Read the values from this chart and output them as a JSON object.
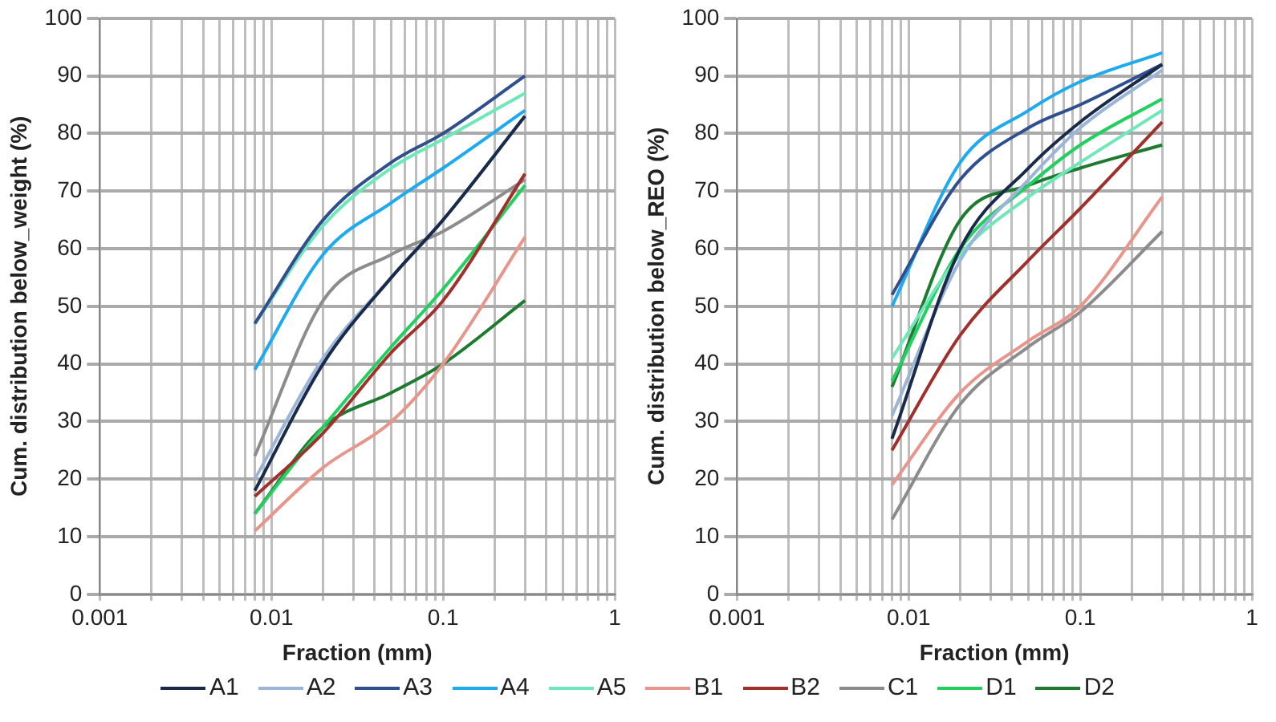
{
  "chart_data": [
    {
      "type": "line",
      "xlabel": "Fraction (mm)",
      "ylabel": "Cum. distribution below_weight (%)",
      "log": "x",
      "grid": true,
      "legend": "bottom",
      "marker": "none",
      "line_style": "solid",
      "x": [
        0.008,
        0.02,
        0.05,
        0.1,
        0.3
      ],
      "xlim": [
        0.001,
        1
      ],
      "ylim": [
        0,
        100
      ],
      "yticks": [
        0,
        10,
        20,
        30,
        40,
        50,
        60,
        70,
        80,
        90,
        100
      ],
      "xticks": [
        {
          "value": 0.001,
          "label": "0.001"
        },
        {
          "value": 0.002,
          "label": null
        },
        {
          "value": 0.003,
          "label": null
        },
        {
          "value": 0.004,
          "label": null
        },
        {
          "value": 0.005,
          "label": null
        },
        {
          "value": 0.006,
          "label": null
        },
        {
          "value": 0.007,
          "label": null
        },
        {
          "value": 0.008,
          "label": null
        },
        {
          "value": 0.009,
          "label": null
        },
        {
          "value": 0.01,
          "label": "0.01"
        },
        {
          "value": 0.02,
          "label": null
        },
        {
          "value": 0.03,
          "label": null
        },
        {
          "value": 0.04,
          "label": null
        },
        {
          "value": 0.05,
          "label": null
        },
        {
          "value": 0.06,
          "label": null
        },
        {
          "value": 0.07,
          "label": null
        },
        {
          "value": 0.08,
          "label": null
        },
        {
          "value": 0.09,
          "label": null
        },
        {
          "value": 0.1,
          "label": "0.1"
        },
        {
          "value": 0.2,
          "label": null
        },
        {
          "value": 0.3,
          "label": null
        },
        {
          "value": 0.4,
          "label": null
        },
        {
          "value": 0.5,
          "label": null
        },
        {
          "value": 0.6,
          "label": null
        },
        {
          "value": 0.7,
          "label": null
        },
        {
          "value": 0.8,
          "label": null
        },
        {
          "value": 0.9,
          "label": null
        },
        {
          "value": 1,
          "label": "1"
        }
      ],
      "series": [
        {
          "name": "A1",
          "color": "#1a2a4a",
          "values": [
            18,
            40,
            55,
            65,
            83
          ]
        },
        {
          "name": "A2",
          "color": "#9bb5d8",
          "values": [
            20,
            41,
            55,
            65,
            83
          ]
        },
        {
          "name": "A3",
          "color": "#2f4f8f",
          "values": [
            47,
            65,
            75,
            80,
            90
          ]
        },
        {
          "name": "A4",
          "color": "#1eaaee",
          "values": [
            39,
            59,
            68,
            74,
            84
          ]
        },
        {
          "name": "A5",
          "color": "#6ee8b8",
          "values": [
            47,
            64,
            74,
            79,
            87
          ]
        },
        {
          "name": "B1",
          "color": "#e8958c",
          "values": [
            11,
            22,
            30,
            40,
            62
          ]
        },
        {
          "name": "B2",
          "color": "#a0302c",
          "values": [
            17,
            28,
            42,
            51,
            73
          ]
        },
        {
          "name": "C1",
          "color": "#8c8c8c",
          "values": [
            24,
            51,
            59,
            63,
            72
          ]
        },
        {
          "name": "D1",
          "color": "#22d060",
          "values": [
            14,
            29,
            43,
            53,
            71
          ]
        },
        {
          "name": "D2",
          "color": "#1e7a30",
          "values": [
            14,
            29,
            35,
            40,
            51
          ]
        }
      ]
    },
    {
      "type": "line",
      "xlabel": "Fraction (mm)",
      "ylabel": "Cum. distribution below_REO (%)",
      "log": "x",
      "grid": true,
      "legend": "bottom",
      "marker": "none",
      "line_style": "solid",
      "x": [
        0.008,
        0.02,
        0.05,
        0.1,
        0.3
      ],
      "xlim": [
        0.001,
        1
      ],
      "ylim": [
        0,
        100
      ],
      "yticks": [
        0,
        10,
        20,
        30,
        40,
        50,
        60,
        70,
        80,
        90,
        100
      ],
      "xticks": [
        {
          "value": 0.001,
          "label": "0.001"
        },
        {
          "value": 0.002,
          "label": null
        },
        {
          "value": 0.003,
          "label": null
        },
        {
          "value": 0.004,
          "label": null
        },
        {
          "value": 0.005,
          "label": null
        },
        {
          "value": 0.006,
          "label": null
        },
        {
          "value": 0.007,
          "label": null
        },
        {
          "value": 0.008,
          "label": null
        },
        {
          "value": 0.009,
          "label": null
        },
        {
          "value": 0.01,
          "label": "0.01"
        },
        {
          "value": 0.02,
          "label": null
        },
        {
          "value": 0.03,
          "label": null
        },
        {
          "value": 0.04,
          "label": null
        },
        {
          "value": 0.05,
          "label": null
        },
        {
          "value": 0.06,
          "label": null
        },
        {
          "value": 0.07,
          "label": null
        },
        {
          "value": 0.08,
          "label": null
        },
        {
          "value": 0.09,
          "label": null
        },
        {
          "value": 0.1,
          "label": "0.1"
        },
        {
          "value": 0.2,
          "label": null
        },
        {
          "value": 0.3,
          "label": null
        },
        {
          "value": 0.4,
          "label": null
        },
        {
          "value": 0.5,
          "label": null
        },
        {
          "value": 0.6,
          "label": null
        },
        {
          "value": 0.7,
          "label": null
        },
        {
          "value": 0.8,
          "label": null
        },
        {
          "value": 0.9,
          "label": null
        },
        {
          "value": 1,
          "label": "1"
        }
      ],
      "series": [
        {
          "name": "A1",
          "color": "#1a2a4a",
          "values": [
            27,
            60,
            74,
            82,
            92
          ]
        },
        {
          "name": "A2",
          "color": "#9bb5d8",
          "values": [
            31,
            58,
            72,
            81,
            91
          ]
        },
        {
          "name": "A3",
          "color": "#2f4f8f",
          "values": [
            52,
            72,
            81,
            85,
            92
          ]
        },
        {
          "name": "A4",
          "color": "#1eaaee",
          "values": [
            50,
            75,
            84,
            89,
            94
          ]
        },
        {
          "name": "A5",
          "color": "#6ee8b8",
          "values": [
            41,
            59,
            69,
            75,
            84
          ]
        },
        {
          "name": "B1",
          "color": "#e8958c",
          "values": [
            19,
            35,
            44,
            50,
            69
          ]
        },
        {
          "name": "B2",
          "color": "#a0302c",
          "values": [
            25,
            45,
            58,
            67,
            82
          ]
        },
        {
          "name": "C1",
          "color": "#8c8c8c",
          "values": [
            13,
            33,
            43,
            49,
            63
          ]
        },
        {
          "name": "D1",
          "color": "#22d060",
          "values": [
            37,
            60,
            71,
            78,
            86
          ]
        },
        {
          "name": "D2",
          "color": "#1e7a30",
          "values": [
            36,
            65,
            71,
            74,
            78
          ]
        }
      ]
    }
  ]
}
